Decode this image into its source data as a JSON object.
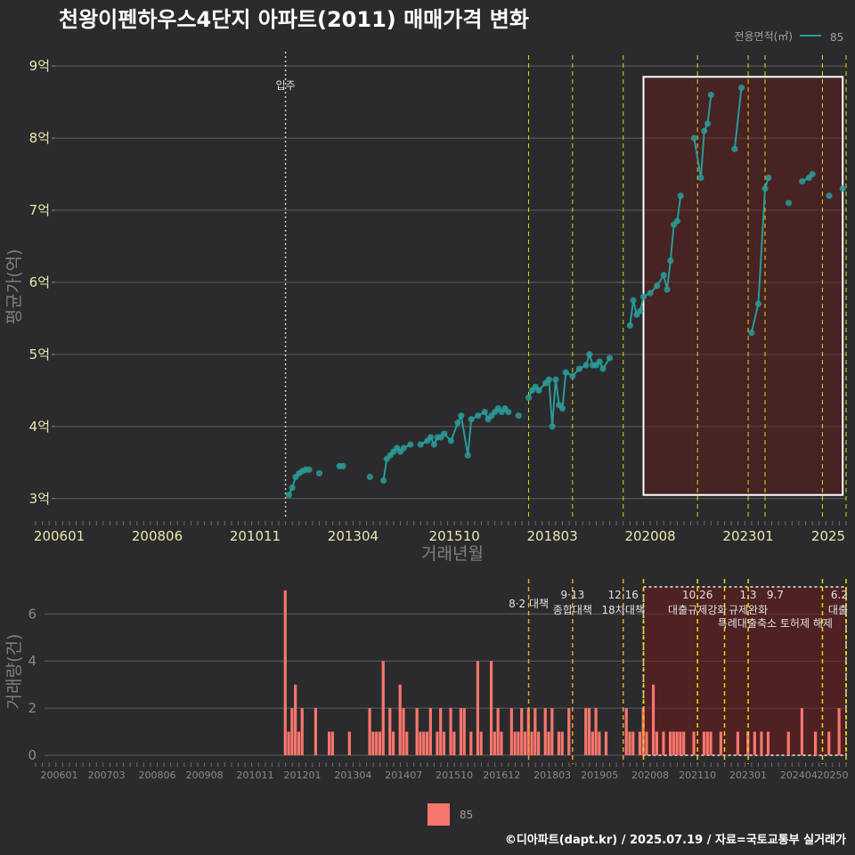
{
  "title": "천왕이펜하우스4단지 아파트(2011) 매매가격 변화",
  "caption": "©디아파트(dapt.kr) / 2025.07.19 / 자료=국토교통부 실거래가",
  "colors": {
    "line": "#2a9a96",
    "bar": "#f8766d",
    "policy": "#e8d800",
    "policy2": "#f0a020",
    "highlight": "#6b1a1a"
  },
  "chart_data": [
    {
      "type": "line",
      "xlabel": "거래년월",
      "ylabel": "평균가(억)",
      "x_ticks": [
        "200601",
        "200806",
        "201011",
        "201304",
        "201510",
        "201803",
        "202008",
        "202301",
        "2025"
      ],
      "y_ticks": [
        "3억",
        "4억",
        "5억",
        "6억",
        "7억",
        "8억",
        "9억"
      ],
      "ylim": [
        2.75,
        9.15
      ],
      "xlim": [
        "2005-06",
        "2025-06"
      ],
      "legend_title": "전용면적(㎡)",
      "legend": [
        {
          "name": "85",
          "color": "#2a9a96"
        }
      ],
      "move_in_label": "입주",
      "move_in": "2011-08",
      "policy_lines": [
        "2017-08",
        "2018-09",
        "2019-12",
        "2021-10",
        "2023-01",
        "2023-06",
        "2024-11",
        "2025-06"
      ],
      "highlight_range": [
        "2020-06",
        "2025-05"
      ],
      "highlight_y": [
        3.05,
        8.85
      ],
      "series": [
        {
          "name": "85",
          "points": [
            [
              "2011-09",
              3.05
            ],
            [
              "2011-10",
              3.15
            ],
            [
              "2011-11",
              3.3
            ],
            [
              "2011-12",
              3.35
            ],
            [
              "2012-01",
              3.38
            ],
            [
              "2012-02",
              3.4
            ],
            [
              "2012-03",
              3.4
            ],
            [
              "2012-06",
              3.35
            ],
            [
              "2012-12",
              3.45
            ],
            [
              "2013-01",
              3.45
            ],
            [
              "2013-09",
              3.3
            ],
            [
              "2014-01",
              3.25
            ],
            [
              "2014-02",
              3.55
            ],
            [
              "2014-03",
              3.6
            ],
            [
              "2014-04",
              3.65
            ],
            [
              "2014-05",
              3.7
            ],
            [
              "2014-06",
              3.65
            ],
            [
              "2014-07",
              3.7
            ],
            [
              "2014-09",
              3.75
            ],
            [
              "2014-12",
              3.75
            ],
            [
              "2015-02",
              3.8
            ],
            [
              "2015-03",
              3.85
            ],
            [
              "2015-04",
              3.75
            ],
            [
              "2015-05",
              3.85
            ],
            [
              "2015-06",
              3.85
            ],
            [
              "2015-07",
              3.9
            ],
            [
              "2015-09",
              3.8
            ],
            [
              "2015-11",
              4.05
            ],
            [
              "2015-12",
              4.15
            ],
            [
              "2016-02",
              3.6
            ],
            [
              "2016-03",
              4.1
            ],
            [
              "2016-05",
              4.15
            ],
            [
              "2016-07",
              4.2
            ],
            [
              "2016-08",
              4.1
            ],
            [
              "2016-09",
              4.15
            ],
            [
              "2016-10",
              4.2
            ],
            [
              "2016-11",
              4.25
            ],
            [
              "2016-12",
              4.2
            ],
            [
              "2017-01",
              4.25
            ],
            [
              "2017-02",
              4.2
            ],
            [
              "2017-05",
              4.15
            ],
            [
              "2017-08",
              4.4
            ],
            [
              "2017-09",
              4.5
            ],
            [
              "2017-10",
              4.55
            ],
            [
              "2017-11",
              4.5
            ],
            [
              "2018-01",
              4.6
            ],
            [
              "2018-02",
              4.65
            ],
            [
              "2018-03",
              4.0
            ],
            [
              "2018-04",
              4.65
            ],
            [
              "2018-05",
              4.3
            ],
            [
              "2018-06",
              4.25
            ],
            [
              "2018-07",
              4.75
            ],
            [
              "2018-09",
              4.7
            ],
            [
              "2018-11",
              4.8
            ],
            [
              "2019-01",
              4.85
            ],
            [
              "2019-02",
              5.0
            ],
            [
              "2019-03",
              4.85
            ],
            [
              "2019-04",
              4.85
            ],
            [
              "2019-05",
              4.9
            ],
            [
              "2019-06",
              4.8
            ],
            [
              "2019-08",
              4.95
            ],
            [
              "2020-02",
              5.4
            ],
            [
              "2020-03",
              5.75
            ],
            [
              "2020-04",
              5.55
            ],
            [
              "2020-05",
              5.6
            ],
            [
              "2020-06",
              5.8
            ],
            [
              "2020-08",
              5.85
            ],
            [
              "2020-10",
              5.95
            ],
            [
              "2020-12",
              6.1
            ],
            [
              "2021-01",
              5.9
            ],
            [
              "2021-02",
              6.3
            ],
            [
              "2021-03",
              6.8
            ],
            [
              "2021-04",
              6.85
            ],
            [
              "2021-05",
              7.2
            ],
            [
              "2021-09",
              8.0
            ],
            [
              "2021-11",
              7.45
            ],
            [
              "2021-12",
              8.1
            ],
            [
              "2022-01",
              8.2
            ],
            [
              "2022-02",
              8.6
            ],
            [
              "2022-09",
              7.85
            ],
            [
              "2022-11",
              8.7
            ],
            [
              "2023-02",
              5.3
            ],
            [
              "2023-04",
              5.7
            ],
            [
              "2023-06",
              7.3
            ],
            [
              "2023-07",
              7.45
            ],
            [
              "2024-01",
              7.1
            ],
            [
              "2024-05",
              7.4
            ],
            [
              "2024-07",
              7.45
            ],
            [
              "2024-08",
              7.5
            ],
            [
              "2025-01",
              7.2
            ],
            [
              "2025-05",
              7.3
            ]
          ]
        }
      ]
    },
    {
      "type": "bar",
      "xlabel": "",
      "ylabel": "거래량(건)",
      "x_ticks": [
        "200601",
        "200703",
        "200806",
        "200908",
        "201011",
        "201201",
        "201304",
        "201407",
        "201510",
        "201612",
        "201803",
        "201905",
        "202008",
        "202110",
        "202301",
        "202404",
        "20250"
      ],
      "y_ticks": [
        "0",
        "2",
        "4",
        "6"
      ],
      "ylim": [
        0,
        7.3
      ],
      "legend": [
        {
          "name": "85",
          "color": "#f8766d"
        }
      ],
      "highlight_range": [
        "2020-06",
        "2025-06"
      ],
      "policy_lines": [
        "2017-08",
        "2018-09",
        "2019-12",
        "2020-06",
        "2021-10",
        "2022-06",
        "2023-01",
        "2024-11",
        "2025-06"
      ],
      "policy_labels": [
        {
          "date": "2017-08",
          "lines": [
            "8·2 대책"
          ],
          "top": 0
        },
        {
          "date": "2018-09",
          "lines": [
            "9·13",
            "종합대책"
          ],
          "top": 1
        },
        {
          "date": "2019-12",
          "lines": [
            "12·16",
            "18차대책"
          ],
          "top": 1
        },
        {
          "date": "2021-10",
          "lines": [
            "10.26",
            "대출규제강화"
          ],
          "top": 1
        },
        {
          "date": "2023-01",
          "lines": [
            "1.3",
            "규제완화"
          ],
          "top": 1
        },
        {
          "date": "2023-09",
          "lines": [
            "9.7",
            "특례대출축소 토허제 해제"
          ],
          "top": 2
        },
        {
          "date": "2025-06",
          "lines": [
            "6.2",
            "대출"
          ],
          "top": 1
        }
      ],
      "bars": [
        [
          "2011-08",
          7
        ],
        [
          "2011-09",
          1
        ],
        [
          "2011-10",
          2
        ],
        [
          "2011-11",
          3
        ],
        [
          "2011-12",
          1
        ],
        [
          "2012-01",
          2
        ],
        [
          "2012-05",
          2
        ],
        [
          "2012-09",
          1
        ],
        [
          "2012-10",
          1
        ],
        [
          "2013-03",
          1
        ],
        [
          "2013-09",
          2
        ],
        [
          "2013-10",
          1
        ],
        [
          "2013-11",
          1
        ],
        [
          "2013-12",
          1
        ],
        [
          "2014-01",
          4
        ],
        [
          "2014-03",
          2
        ],
        [
          "2014-04",
          1
        ],
        [
          "2014-06",
          3
        ],
        [
          "2014-07",
          2
        ],
        [
          "2014-08",
          1
        ],
        [
          "2014-11",
          2
        ],
        [
          "2014-12",
          1
        ],
        [
          "2015-01",
          1
        ],
        [
          "2015-02",
          1
        ],
        [
          "2015-03",
          2
        ],
        [
          "2015-05",
          1
        ],
        [
          "2015-06",
          2
        ],
        [
          "2015-07",
          1
        ],
        [
          "2015-09",
          2
        ],
        [
          "2015-10",
          1
        ],
        [
          "2015-12",
          2
        ],
        [
          "2016-01",
          2
        ],
        [
          "2016-03",
          1
        ],
        [
          "2016-05",
          4
        ],
        [
          "2016-06",
          1
        ],
        [
          "2016-09",
          4
        ],
        [
          "2016-10",
          1
        ],
        [
          "2016-11",
          2
        ],
        [
          "2016-12",
          1
        ],
        [
          "2017-03",
          2
        ],
        [
          "2017-04",
          1
        ],
        [
          "2017-05",
          1
        ],
        [
          "2017-06",
          2
        ],
        [
          "2017-07",
          1
        ],
        [
          "2017-08",
          2
        ],
        [
          "2017-09",
          1
        ],
        [
          "2017-10",
          2
        ],
        [
          "2017-11",
          1
        ],
        [
          "2018-01",
          2
        ],
        [
          "2018-02",
          1
        ],
        [
          "2018-03",
          2
        ],
        [
          "2018-05",
          1
        ],
        [
          "2018-06",
          1
        ],
        [
          "2018-08",
          2
        ],
        [
          "2019-01",
          2
        ],
        [
          "2019-02",
          2
        ],
        [
          "2019-03",
          1
        ],
        [
          "2019-04",
          2
        ],
        [
          "2019-05",
          1
        ],
        [
          "2019-07",
          1
        ],
        [
          "2020-01",
          2
        ],
        [
          "2020-02",
          1
        ],
        [
          "2020-03",
          1
        ],
        [
          "2020-05",
          1
        ],
        [
          "2020-06",
          2
        ],
        [
          "2020-07",
          1
        ],
        [
          "2020-09",
          3
        ],
        [
          "2020-10",
          1
        ],
        [
          "2020-12",
          1
        ],
        [
          "2021-02",
          1
        ],
        [
          "2021-03",
          1
        ],
        [
          "2021-04",
          1
        ],
        [
          "2021-05",
          1
        ],
        [
          "2021-06",
          1
        ],
        [
          "2021-09",
          1
        ],
        [
          "2021-12",
          1
        ],
        [
          "2022-01",
          1
        ],
        [
          "2022-02",
          1
        ],
        [
          "2022-05",
          1
        ],
        [
          "2022-10",
          1
        ],
        [
          "2023-01",
          1
        ],
        [
          "2023-03",
          1
        ],
        [
          "2023-05",
          1
        ],
        [
          "2023-07",
          1
        ],
        [
          "2024-01",
          1
        ],
        [
          "2024-05",
          2
        ],
        [
          "2024-09",
          1
        ],
        [
          "2025-01",
          1
        ],
        [
          "2025-04",
          2
        ]
      ]
    }
  ]
}
